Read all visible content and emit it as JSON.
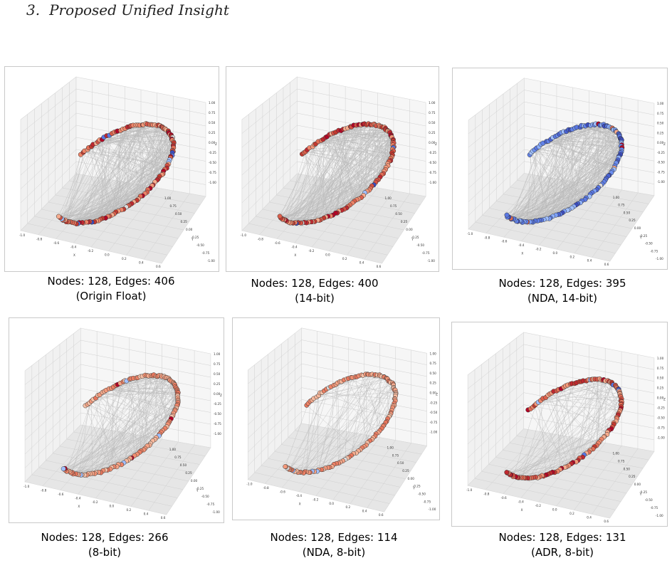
{
  "section": {
    "number": "3.",
    "title": "Proposed Unified Insight"
  },
  "axis_ticks": {
    "x": [
      "-1.0",
      "-0.8",
      "-0.6",
      "-0.4",
      "-0.2",
      "0.0",
      "0.2",
      "0.4",
      "0.6"
    ],
    "y": [
      "1.00",
      "0.75",
      "0.50",
      "0.25",
      "0.00",
      "-0.25",
      "-0.50",
      "-0.75",
      "-1.00"
    ],
    "z": [
      "1.00",
      "0.75",
      "0.50",
      "0.25",
      "0.00",
      "-0.25",
      "-0.50",
      "-0.75",
      "-1.00"
    ],
    "x_label": "X",
    "y_label": "Y",
    "z_label": "Z"
  },
  "colors": {
    "edge": "#b9b9b9",
    "pane": "#f1f1f1",
    "pane_dark": "#e6e6e6",
    "grid": "#d0d0d0",
    "node_outline": "#333333"
  },
  "panels": [
    {
      "caption_line1": "Nodes: 128, Edges: 406",
      "caption_line2": "(Origin Float)",
      "nodes": 128,
      "edges": 406,
      "palette": "red"
    },
    {
      "caption_line1": "Nodes: 128, Edges: 400",
      "caption_line2": "(14-bit)",
      "nodes": 128,
      "edges": 400,
      "palette": "red"
    },
    {
      "caption_line1": "Nodes: 128, Edges: 395",
      "caption_line2": "(NDA, 14-bit)",
      "nodes": 128,
      "edges": 395,
      "palette": "blue"
    },
    {
      "caption_line1": "Nodes: 128, Edges: 266",
      "caption_line2": "(8-bit)",
      "nodes": 128,
      "edges": 266,
      "palette": "salmon"
    },
    {
      "caption_line1": "Nodes: 128, Edges: 114",
      "caption_line2": "(NDA, 8-bit)",
      "nodes": 128,
      "edges": 114,
      "palette": "salmon"
    },
    {
      "caption_line1": "Nodes: 128, Edges: 131",
      "caption_line2": "(ADR, 8-bit)",
      "nodes": 128,
      "edges": 131,
      "palette": "red"
    }
  ]
}
